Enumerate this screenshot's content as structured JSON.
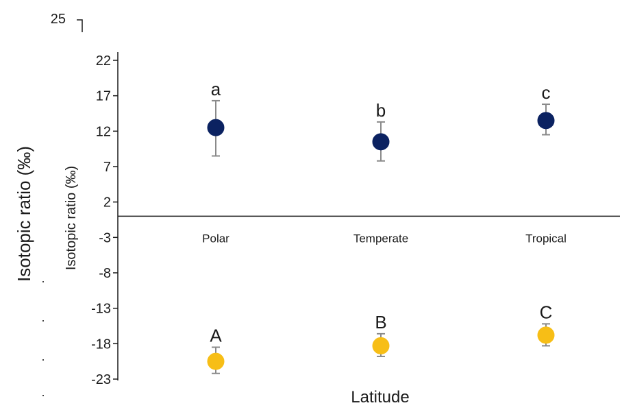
{
  "chart_data": {
    "type": "scatter",
    "stray_tick_label": "25",
    "ylabel_outer": "Isotopic ratio (‰)",
    "ylabel_inner": "Isotopic ratio (‰)",
    "xlabel": "Latitude",
    "categories": [
      "Polar",
      "Temperate",
      "Tropical"
    ],
    "yticks": [
      22,
      17,
      12,
      7,
      2,
      -3,
      -8,
      -13,
      -18,
      -23
    ],
    "ylim": [
      -23,
      22
    ],
    "zero_line": 0,
    "series": [
      {
        "color": "#0b2261",
        "values": [
          12.5,
          10.5,
          13.5
        ],
        "err_low": [
          8.5,
          7.8,
          11.5
        ],
        "err_high": [
          16.3,
          13.3,
          15.8
        ],
        "letters": [
          "a",
          "b",
          "c"
        ]
      },
      {
        "color": "#f7be16",
        "values": [
          -20.5,
          -18.3,
          -16.8
        ],
        "err_low": [
          -22.2,
          -19.8,
          -18.3
        ],
        "err_high": [
          -18.5,
          -16.6,
          -15.2
        ],
        "letters": [
          "A",
          "B",
          "C"
        ]
      }
    ]
  }
}
